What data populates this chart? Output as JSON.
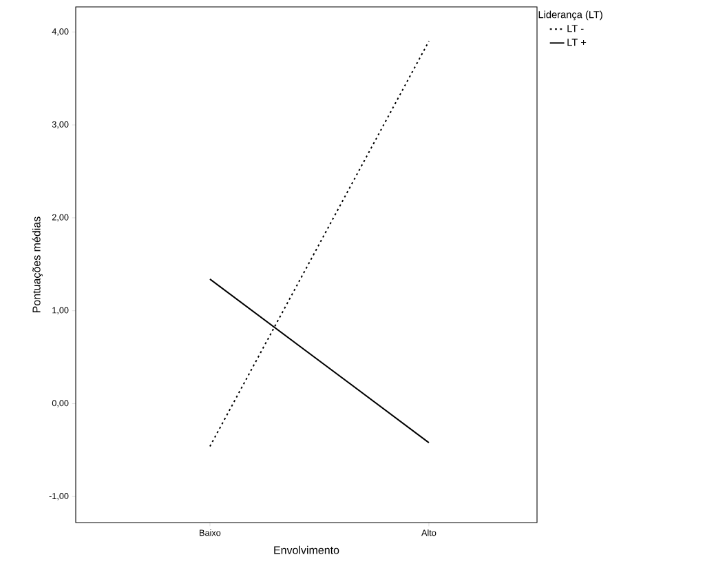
{
  "chart_data": {
    "type": "line",
    "xlabel": "Envolvimento",
    "ylabel": "Pontuações médias",
    "legend_title": "Liderança (LT)",
    "categories": [
      "Baixo",
      "Alto"
    ],
    "series": [
      {
        "name": "LT -",
        "color": "#000000",
        "line_style": "dotted",
        "values": [
          -0.46,
          3.9
        ]
      },
      {
        "name": "LT +",
        "color": "#000000",
        "line_style": "solid",
        "values": [
          1.34,
          -0.42
        ]
      }
    ],
    "ylim": [
      -1.28,
      4.27
    ],
    "yticks": [
      {
        "value": -1,
        "label": "-1,00"
      },
      {
        "value": 0,
        "label": "0,00"
      },
      {
        "value": 1,
        "label": "1,00"
      },
      {
        "value": 2,
        "label": "2,00"
      },
      {
        "value": 3,
        "label": "3,00"
      },
      {
        "value": 4,
        "label": "4,00"
      }
    ],
    "grid": false,
    "legend": "top right",
    "marker": "none"
  }
}
